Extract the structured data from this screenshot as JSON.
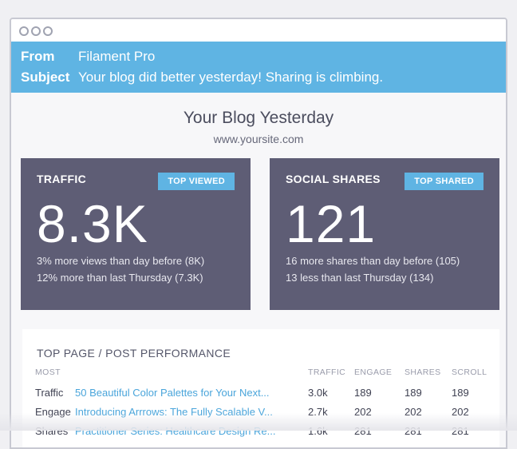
{
  "email": {
    "from_label": "From",
    "from_value": "Filament Pro",
    "subject_label": "Subject",
    "subject_value": "Your blog did better yesterday! Sharing is climbing."
  },
  "blog": {
    "title": "Your Blog Yesterday",
    "url": "www.yoursite.com"
  },
  "cards": [
    {
      "title": "TRAFFIC",
      "badge": "TOP VIEWED",
      "value": "8.3K",
      "line1": "3% more views than day before (8K)",
      "line2": "12% more than last Thursday (7.3K)"
    },
    {
      "title": "SOCIAL SHARES",
      "badge": "TOP SHARED",
      "value": "121",
      "line1": "16 more shares than day before (105)",
      "line2": "13 less than last Thursday (134)"
    }
  ],
  "performance": {
    "title": "TOP PAGE / POST PERFORMANCE",
    "columns": [
      "MOST",
      "TRAFFIC",
      "ENGAGE",
      "SHARES",
      "SCROLL"
    ],
    "rows": [
      {
        "label": "Traffic",
        "link": "50 Beautiful Color Palettes for Your Next...",
        "traffic": "3.0k",
        "engage": "189",
        "shares": "189",
        "scroll": "189"
      },
      {
        "label": "Engage",
        "link": "Introducing Arrrows: The Fully Scalable V...",
        "traffic": "2.7k",
        "engage": "202",
        "shares": "202",
        "scroll": "202"
      },
      {
        "label": "Shares",
        "link": "Practitioner Series: Healthcare Design Re...",
        "traffic": "1.6k",
        "engage": "281",
        "shares": "281",
        "scroll": "281"
      }
    ]
  },
  "colors": {
    "accent": "#5fb4e3",
    "card_bg": "#5e5d75"
  }
}
